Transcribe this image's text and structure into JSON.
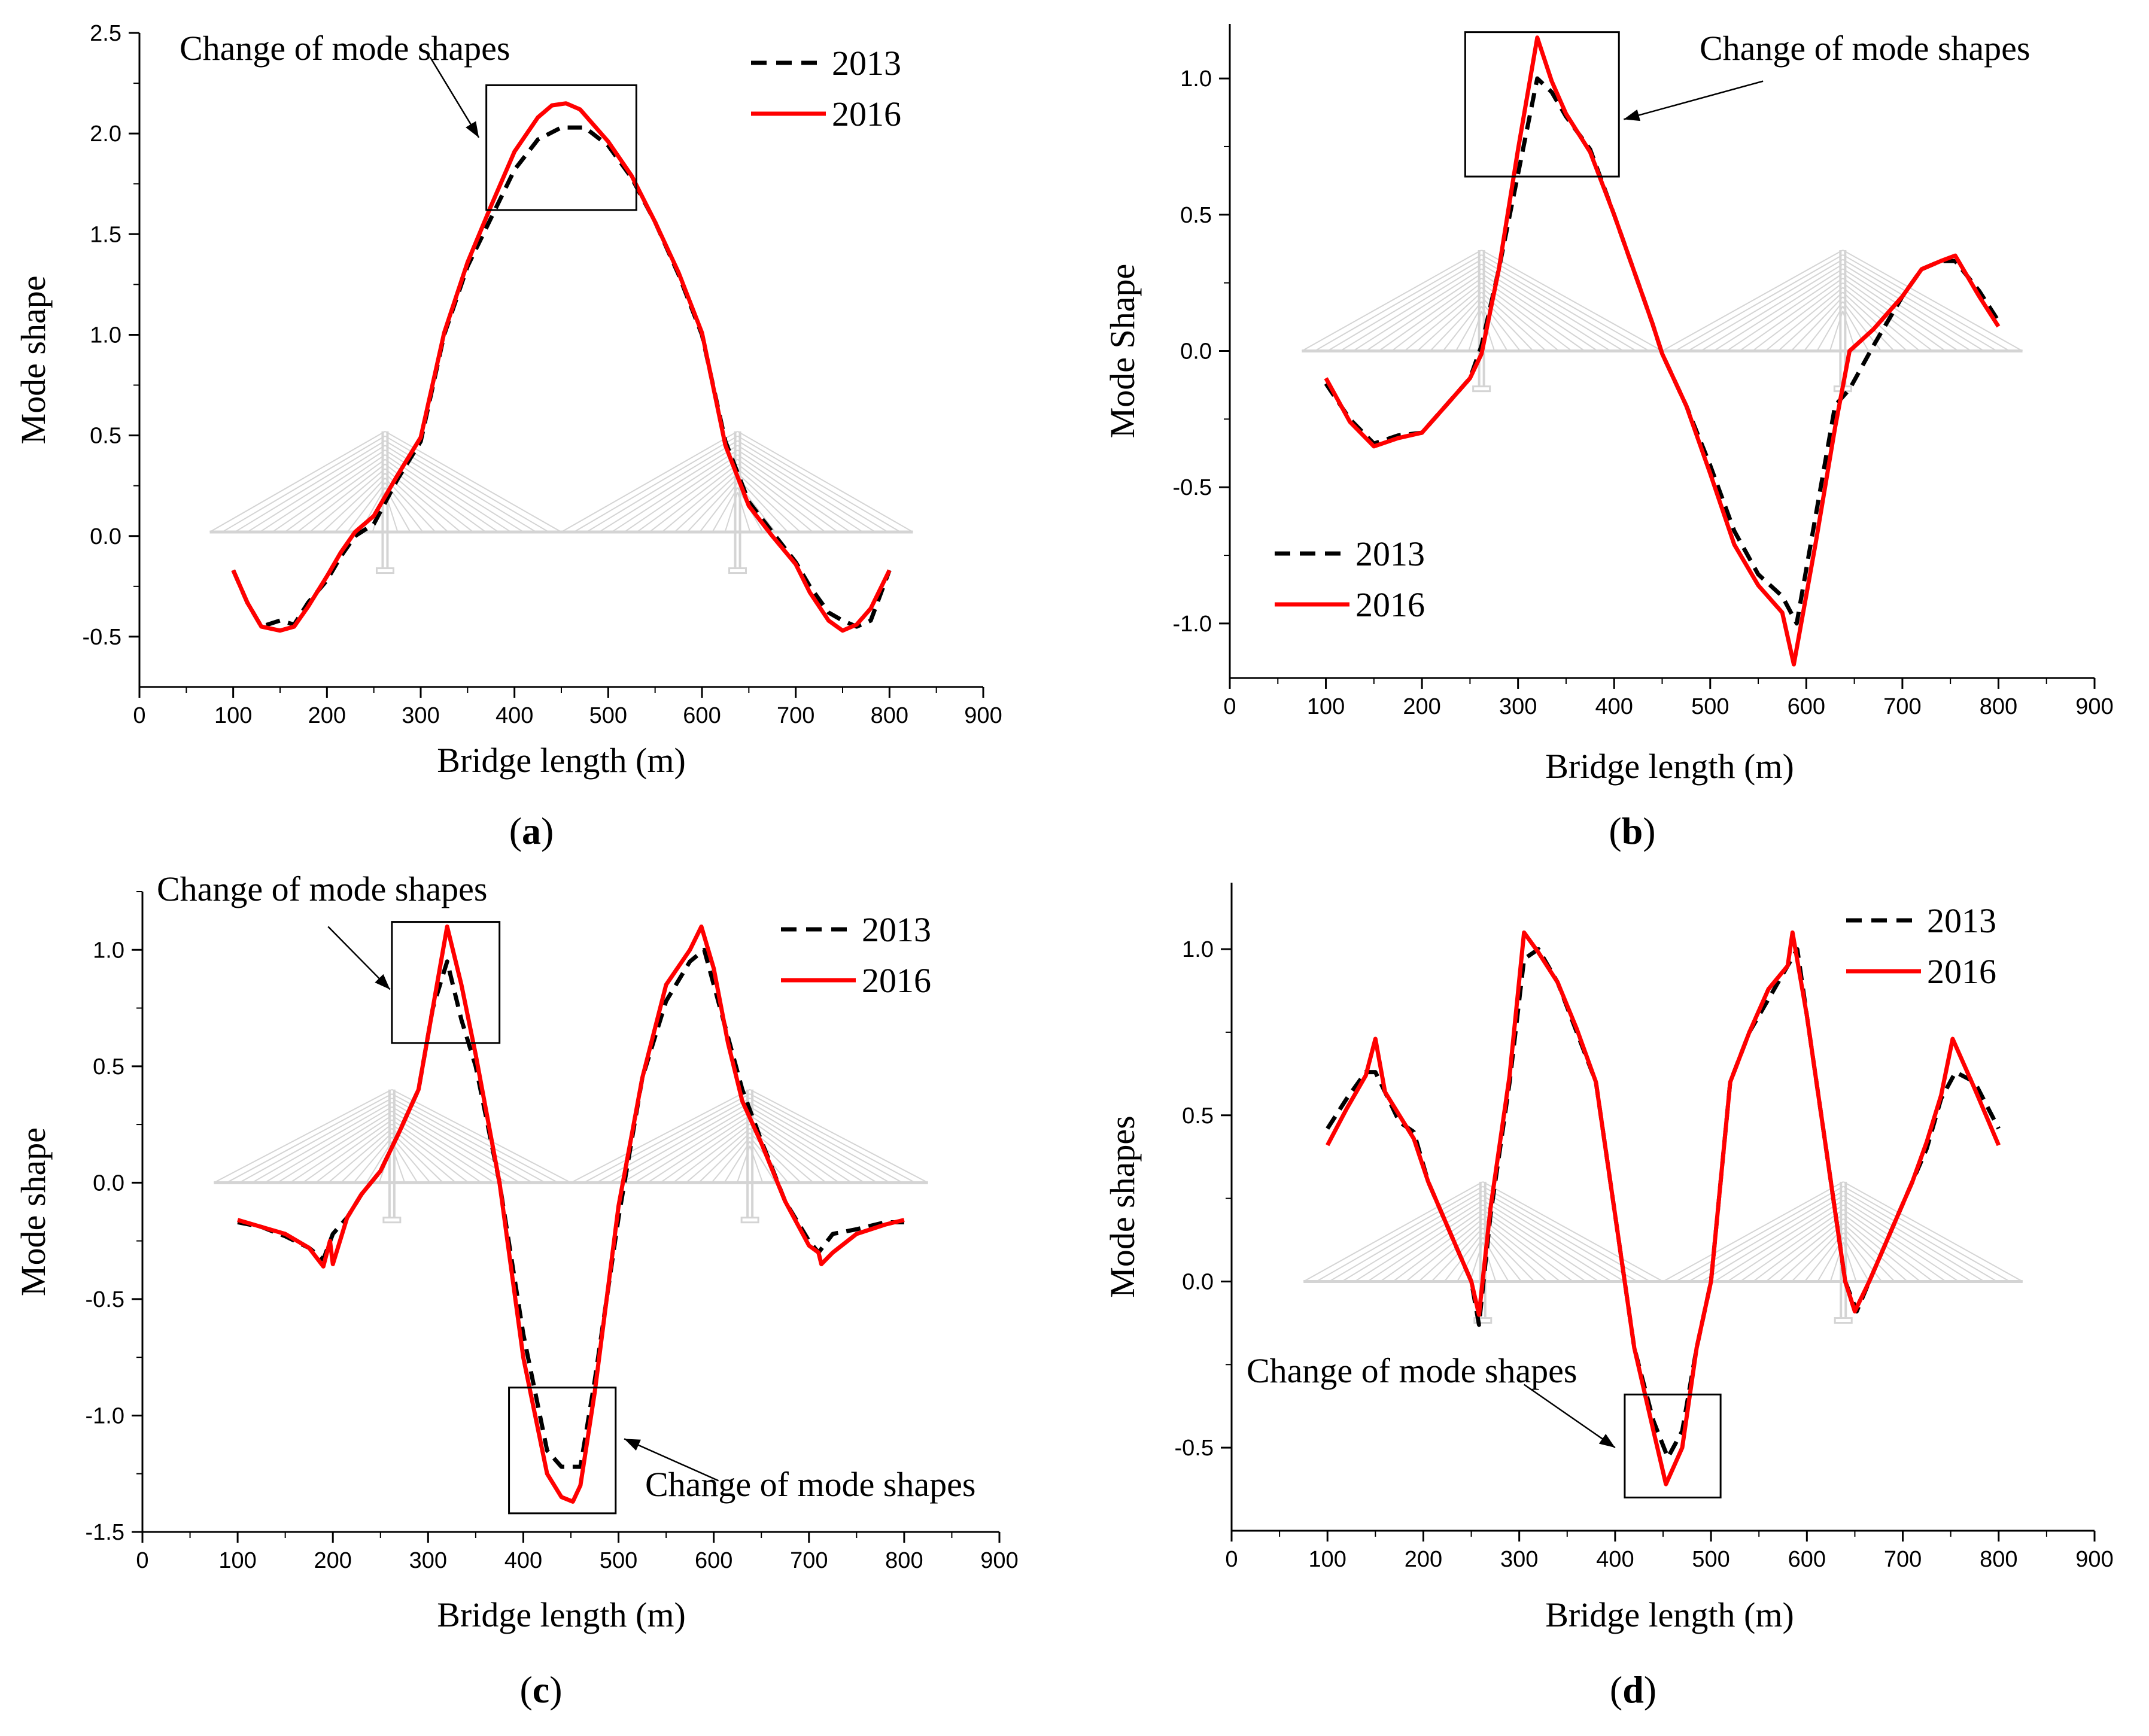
{
  "colors": {
    "s2013": "#000000",
    "s2016": "#ff0000",
    "bridge": "#d4d4d4"
  },
  "chart_data": [
    {
      "id": "a",
      "type": "line",
      "panel_label": "a",
      "xlabel": "Bridge length (m)",
      "ylabel": "Mode shape",
      "xlim": [
        0,
        900
      ],
      "ylim": [
        -0.75,
        2.5
      ],
      "xticks": [
        "0",
        "100",
        "200",
        "300",
        "400",
        "500",
        "600",
        "700",
        "800",
        "900"
      ],
      "yticks": [
        "-0.5",
        "0.0",
        "0.5",
        "1.0",
        "1.5",
        "2.0",
        "2.5"
      ],
      "legend": [
        "2013",
        "2016"
      ],
      "series": [
        {
          "name": "2013",
          "x": [
            100,
            115,
            130,
            150,
            165,
            180,
            200,
            215,
            230,
            250,
            275,
            300,
            325,
            350,
            375,
            400,
            425,
            450,
            475,
            500,
            525,
            550,
            575,
            600,
            625,
            650,
            675,
            700,
            715,
            735,
            750,
            765,
            780,
            800
          ],
          "y": [
            -0.17,
            -0.33,
            -0.45,
            -0.42,
            -0.44,
            -0.33,
            -0.22,
            -0.1,
            0.0,
            0.06,
            0.28,
            0.47,
            1.0,
            1.34,
            1.58,
            1.82,
            1.97,
            2.03,
            2.03,
            1.94,
            1.78,
            1.56,
            1.3,
            1.0,
            0.47,
            0.17,
            0.02,
            -0.13,
            -0.25,
            -0.38,
            -0.42,
            -0.45,
            -0.42,
            -0.17
          ]
        },
        {
          "name": "2016",
          "x": [
            100,
            115,
            130,
            150,
            165,
            180,
            200,
            215,
            230,
            250,
            275,
            300,
            325,
            350,
            375,
            400,
            425,
            440,
            455,
            470,
            500,
            525,
            550,
            575,
            600,
            625,
            650,
            675,
            700,
            715,
            735,
            750,
            765,
            780,
            800
          ],
          "y": [
            -0.17,
            -0.33,
            -0.45,
            -0.47,
            -0.45,
            -0.35,
            -0.2,
            -0.08,
            0.02,
            0.1,
            0.3,
            0.49,
            1.01,
            1.36,
            1.64,
            1.91,
            2.08,
            2.14,
            2.15,
            2.12,
            1.96,
            1.79,
            1.56,
            1.31,
            1.01,
            0.45,
            0.15,
            0.0,
            -0.14,
            -0.28,
            -0.42,
            -0.47,
            -0.44,
            -0.36,
            -0.17
          ]
        }
      ],
      "annotations": [
        {
          "text": "Change of mode shapes"
        }
      ],
      "legend_position": "top-right"
    },
    {
      "id": "b",
      "type": "line",
      "panel_label": "b",
      "xlabel": "Bridge length (m)",
      "ylabel": "Mode Shape",
      "xlim": [
        0,
        900
      ],
      "ylim": [
        -1.2,
        1.2
      ],
      "xticks": [
        "0",
        "100",
        "200",
        "300",
        "400",
        "500",
        "600",
        "700",
        "800",
        "900"
      ],
      "yticks": [
        "-1.0",
        "-0.5",
        "0.0",
        "0.5",
        "1.0"
      ],
      "legend": [
        "2013",
        "2016"
      ],
      "series": [
        {
          "name": "2013",
          "x": [
            100,
            125,
            150,
            175,
            200,
            225,
            250,
            262,
            280,
            300,
            320,
            335,
            350,
            375,
            400,
            425,
            440,
            450,
            475,
            500,
            525,
            550,
            575,
            590,
            610,
            630,
            645,
            670,
            700,
            720,
            740,
            755,
            780,
            800
          ],
          "y": [
            -0.12,
            -0.25,
            -0.34,
            -0.31,
            -0.3,
            -0.2,
            -0.1,
            0.02,
            0.3,
            0.65,
            1.0,
            0.95,
            0.86,
            0.74,
            0.5,
            0.25,
            0.1,
            -0.01,
            -0.2,
            -0.42,
            -0.66,
            -0.82,
            -0.9,
            -1.0,
            -0.6,
            -0.2,
            -0.14,
            0.02,
            0.2,
            0.3,
            0.33,
            0.33,
            0.22,
            0.11
          ]
        },
        {
          "name": "2016",
          "x": [
            100,
            125,
            150,
            175,
            200,
            225,
            250,
            262,
            280,
            300,
            320,
            335,
            350,
            375,
            400,
            425,
            440,
            450,
            475,
            500,
            525,
            550,
            575,
            587,
            610,
            630,
            645,
            670,
            700,
            720,
            740,
            755,
            780,
            800
          ],
          "y": [
            -0.1,
            -0.26,
            -0.35,
            -0.32,
            -0.3,
            -0.2,
            -0.1,
            -0.01,
            0.3,
            0.74,
            1.15,
            0.99,
            0.87,
            0.73,
            0.5,
            0.25,
            0.1,
            -0.01,
            -0.2,
            -0.45,
            -0.71,
            -0.86,
            -0.96,
            -1.15,
            -0.7,
            -0.28,
            0.0,
            0.08,
            0.2,
            0.3,
            0.33,
            0.35,
            0.2,
            0.09
          ]
        }
      ],
      "annotations": [
        {
          "text": "Change of mode shapes"
        }
      ],
      "legend_position": "bottom-left"
    },
    {
      "id": "c",
      "type": "line",
      "panel_label": "c",
      "xlabel": "Bridge length (m)",
      "ylabel": "Mode shape",
      "xlim": [
        0,
        900
      ],
      "ylim": [
        -1.5,
        1.25
      ],
      "xticks": [
        "0",
        "100",
        "200",
        "300",
        "400",
        "500",
        "600",
        "700",
        "800",
        "900"
      ],
      "yticks": [
        "-1.5",
        "-1.0",
        "-0.5",
        "0.0",
        "0.5",
        "1.0"
      ],
      "legend": [
        "2013",
        "2016"
      ],
      "series": [
        {
          "name": "2013",
          "x": [
            100,
            125,
            150,
            175,
            190,
            200,
            215,
            230,
            250,
            270,
            290,
            305,
            320,
            335,
            350,
            375,
            400,
            425,
            440,
            460,
            475,
            500,
            525,
            550,
            575,
            590,
            610,
            630,
            650,
            675,
            700,
            710,
            725,
            750,
            780,
            800
          ],
          "y": [
            -0.17,
            -0.19,
            -0.23,
            -0.28,
            -0.33,
            -0.22,
            -0.15,
            -0.05,
            0.05,
            0.22,
            0.4,
            0.75,
            0.95,
            0.7,
            0.5,
            0.0,
            -0.65,
            -1.15,
            -1.22,
            -1.22,
            -0.85,
            -0.15,
            0.45,
            0.78,
            0.95,
            1.0,
            0.7,
            0.4,
            0.18,
            -0.08,
            -0.25,
            -0.3,
            -0.22,
            -0.2,
            -0.17,
            -0.17
          ]
        },
        {
          "name": "2016",
          "x": [
            100,
            125,
            150,
            175,
            190,
            197,
            200,
            215,
            230,
            250,
            270,
            290,
            305,
            320,
            335,
            350,
            375,
            400,
            425,
            440,
            452,
            460,
            475,
            500,
            525,
            550,
            575,
            587,
            600,
            615,
            630,
            650,
            675,
            700,
            710,
            713,
            725,
            750,
            780,
            800
          ],
          "y": [
            -0.16,
            -0.19,
            -0.22,
            -0.28,
            -0.36,
            -0.25,
            -0.35,
            -0.15,
            -0.05,
            0.05,
            0.22,
            0.4,
            0.75,
            1.1,
            0.85,
            0.55,
            0.0,
            -0.75,
            -1.25,
            -1.35,
            -1.37,
            -1.3,
            -0.9,
            -0.1,
            0.45,
            0.85,
            1.0,
            1.1,
            0.92,
            0.6,
            0.35,
            0.17,
            -0.08,
            -0.27,
            -0.3,
            -0.35,
            -0.3,
            -0.22,
            -0.18,
            -0.16
          ]
        }
      ],
      "annotations": [
        {
          "text": "Change of mode shapes"
        },
        {
          "text": "Change of mode shapes"
        }
      ],
      "legend_position": "top-right"
    },
    {
      "id": "d",
      "type": "line",
      "panel_label": "d",
      "xlabel": "Bridge length (m)",
      "ylabel": "Mode shapes",
      "xlim": [
        0,
        900
      ],
      "ylim": [
        -0.75,
        1.2
      ],
      "xticks": [
        "0",
        "100",
        "200",
        "300",
        "400",
        "500",
        "600",
        "700",
        "800",
        "900"
      ],
      "yticks": [
        "-0.5",
        "0.0",
        "0.5",
        "1.0"
      ],
      "legend": [
        "2013",
        "2016"
      ],
      "series": [
        {
          "name": "2013",
          "x": [
            100,
            120,
            140,
            150,
            160,
            175,
            190,
            205,
            220,
            235,
            250,
            258,
            270,
            290,
            305,
            320,
            340,
            360,
            380,
            400,
            420,
            440,
            455,
            470,
            485,
            500,
            520,
            540,
            560,
            580,
            590,
            600,
            620,
            640,
            652,
            665,
            680,
            695,
            710,
            725,
            740,
            755,
            775,
            800
          ],
          "y": [
            0.46,
            0.55,
            0.63,
            0.63,
            0.57,
            0.48,
            0.45,
            0.3,
            0.2,
            0.1,
            0.0,
            -0.13,
            0.2,
            0.6,
            0.97,
            1.0,
            0.9,
            0.75,
            0.6,
            0.2,
            -0.2,
            -0.42,
            -0.53,
            -0.45,
            -0.2,
            0.0,
            0.6,
            0.75,
            0.85,
            0.95,
            1.0,
            0.8,
            0.4,
            0.0,
            -0.09,
            0.0,
            0.1,
            0.2,
            0.3,
            0.4,
            0.55,
            0.63,
            0.6,
            0.46
          ]
        },
        {
          "name": "2016",
          "x": [
            100,
            120,
            140,
            150,
            160,
            175,
            190,
            205,
            220,
            235,
            250,
            258,
            270,
            290,
            305,
            320,
            340,
            360,
            380,
            400,
            420,
            440,
            453,
            470,
            485,
            500,
            520,
            540,
            560,
            580,
            585,
            600,
            620,
            640,
            650,
            665,
            680,
            695,
            710,
            725,
            740,
            752,
            775,
            800
          ],
          "y": [
            0.41,
            0.52,
            0.62,
            0.73,
            0.57,
            0.5,
            0.43,
            0.3,
            0.2,
            0.1,
            0.0,
            -0.1,
            0.22,
            0.62,
            1.05,
            0.99,
            0.9,
            0.76,
            0.6,
            0.2,
            -0.2,
            -0.45,
            -0.61,
            -0.5,
            -0.2,
            0.0,
            0.6,
            0.75,
            0.88,
            0.95,
            1.05,
            0.8,
            0.4,
            0.0,
            -0.09,
            0.0,
            0.1,
            0.2,
            0.3,
            0.42,
            0.56,
            0.73,
            0.58,
            0.41
          ]
        }
      ],
      "annotations": [
        {
          "text": "Change of mode shapes"
        }
      ],
      "legend_position": "top-right"
    }
  ]
}
